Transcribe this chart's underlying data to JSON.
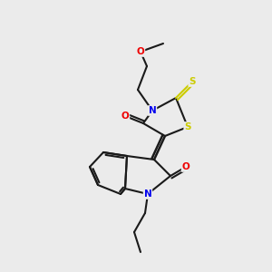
{
  "background_color": "#ebebeb",
  "bond_color": "#1a1a1a",
  "atom_colors": {
    "N": "#0000ee",
    "O": "#ee0000",
    "S": "#cccc00",
    "C": "#1a1a1a"
  },
  "figsize": [
    3.0,
    3.0
  ],
  "dpi": 100
}
